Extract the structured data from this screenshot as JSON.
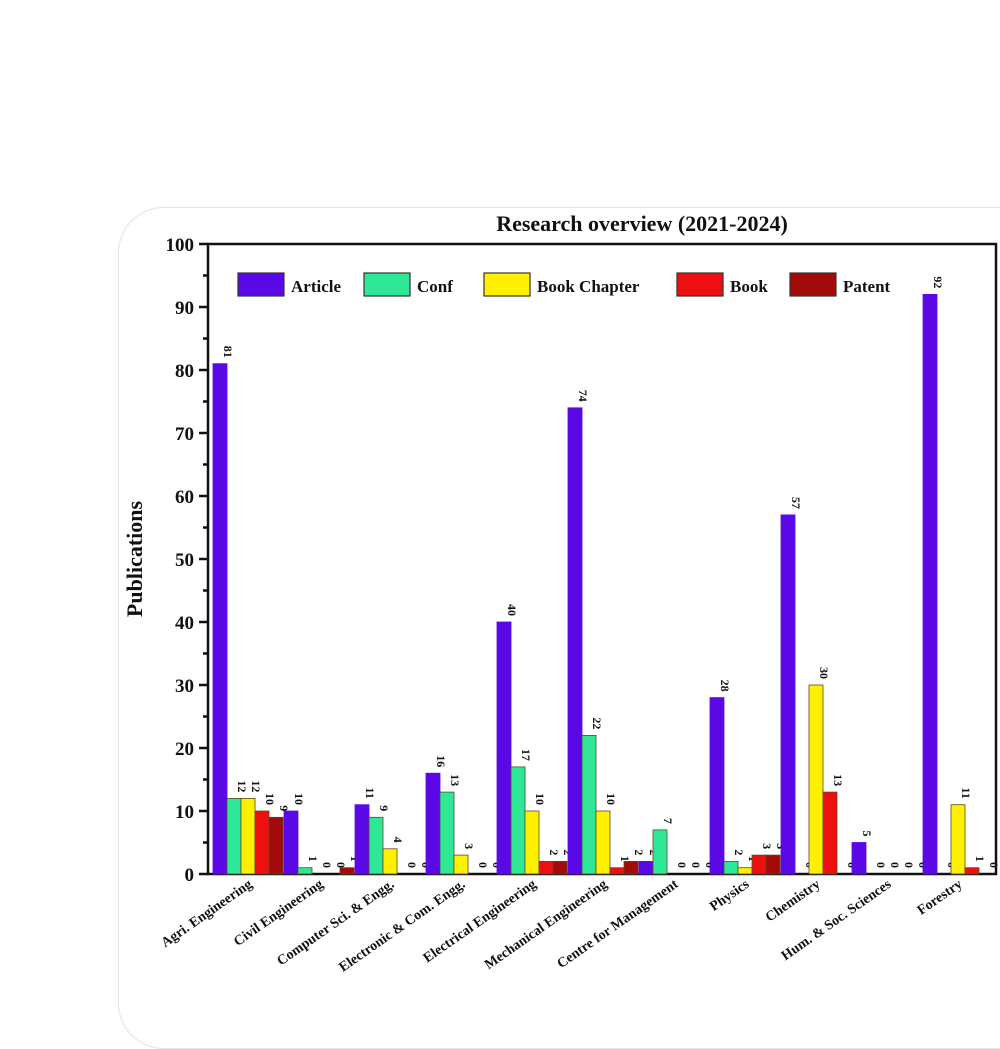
{
  "chart_data": {
    "type": "bar",
    "title": "Research overview (2021-2024)",
    "xlabel": "",
    "ylabel": "Publications",
    "ylim": [
      0,
      100
    ],
    "yticks": [
      0,
      10,
      20,
      30,
      40,
      50,
      60,
      70,
      80,
      90,
      100
    ],
    "grid": false,
    "legend_position": "top",
    "categories": [
      "Agri. Engineering",
      "Civil Engineering",
      "Computer Sci. & Engg.",
      "Electronic & Com. Engg.",
      "Electrical Engineering",
      "Mechanical Engineering",
      "Centre for Management",
      "Physics",
      "Chemistry",
      "Hum. & Soc. Sciences",
      "Forestry"
    ],
    "series": [
      {
        "name": "Article",
        "color": "#5a08e6",
        "values": [
          81,
          10,
          11,
          16,
          40,
          74,
          2,
          28,
          57,
          5,
          92
        ]
      },
      {
        "name": "Conf",
        "color": "#2ee898",
        "values": [
          12,
          1,
          9,
          13,
          17,
          22,
          7,
          2,
          0,
          0,
          0
        ]
      },
      {
        "name": "Book Chapter",
        "color": "#fff000",
        "values": [
          12,
          0,
          4,
          3,
          10,
          10,
          0,
          1,
          30,
          0,
          11
        ]
      },
      {
        "name": "Book",
        "color": "#ee1010",
        "values": [
          10,
          0,
          0,
          0,
          2,
          1,
          0,
          3,
          13,
          0,
          1
        ]
      },
      {
        "name": "Patent",
        "color": "#a30a0a",
        "values": [
          9,
          1,
          0,
          0,
          2,
          2,
          0,
          3,
          0,
          0,
          0
        ]
      }
    ]
  }
}
